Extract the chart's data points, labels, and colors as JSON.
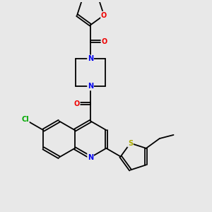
{
  "background_color": "#e8e8e8",
  "bond_color": "#000000",
  "atom_colors": {
    "N": "#0000ee",
    "O": "#ee0000",
    "S": "#aaaa00",
    "Cl": "#00aa00",
    "C": "#000000"
  }
}
